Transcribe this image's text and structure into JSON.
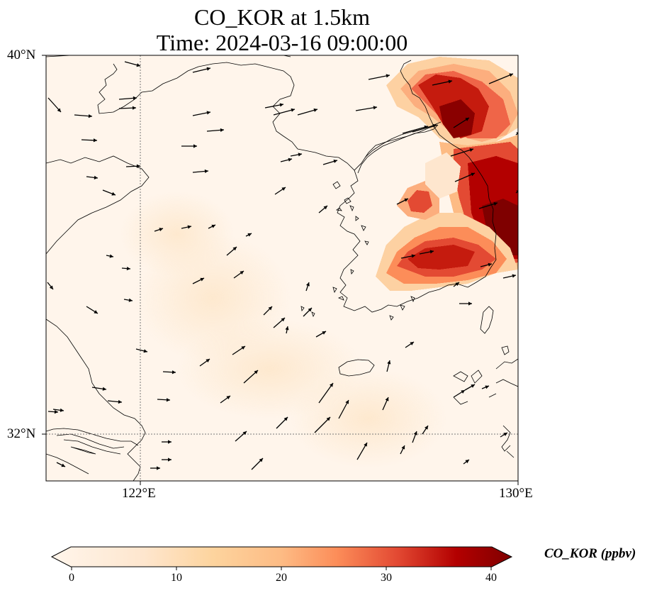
{
  "title": {
    "line1": "CO_KOR at 1.5km",
    "line2": "Time: 2024-03-16 09:00:00"
  },
  "axes": {
    "lat_labels": [
      "40°N",
      "32°N"
    ],
    "lon_labels": [
      "122°E",
      "130°E"
    ]
  },
  "colorbar": {
    "label": "CO_KOR (ppbv)",
    "ticks": [
      "0",
      "10",
      "20",
      "30",
      "40"
    ],
    "range": [
      0,
      40
    ],
    "colors": [
      "#fff5eb",
      "#fdd49e",
      "#fdbb84",
      "#fc8d59",
      "#e34a33",
      "#b30000",
      "#7f0000"
    ]
  },
  "map": {
    "lon_range": [
      120,
      130
    ],
    "lat_range": [
      31,
      40
    ],
    "gridlines": {
      "lons": [
        122
      ],
      "lats": [
        32
      ]
    },
    "background_color": "#fff5eb"
  }
}
